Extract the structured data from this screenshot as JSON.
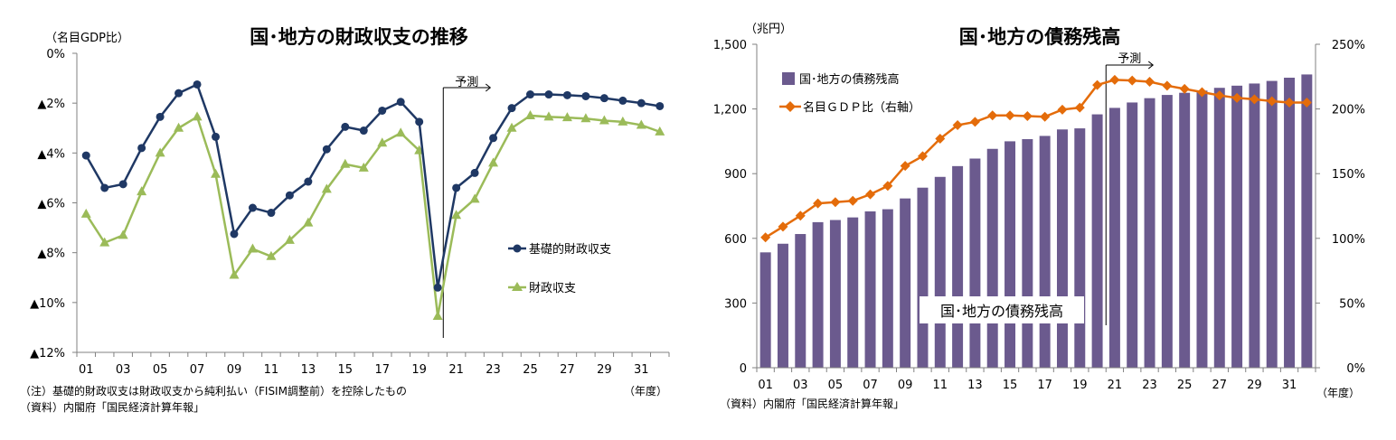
{
  "chart_data": [
    {
      "type": "line",
      "title": "国･地方の財政収支の推移",
      "ylabel": "（名目GDP比）",
      "xlabel": "（年度）",
      "ylim": [
        -12,
        0
      ],
      "y_ticks": [
        0,
        -2,
        -4,
        -6,
        -8,
        -10,
        -12
      ],
      "y_tick_labels": [
        "0%",
        "▲2%",
        "▲4%",
        "▲6%",
        "▲8%",
        "▲10%",
        "▲12%"
      ],
      "x": [
        "01",
        "02",
        "03",
        "04",
        "05",
        "06",
        "07",
        "08",
        "09",
        "10",
        "11",
        "12",
        "13",
        "14",
        "15",
        "16",
        "17",
        "18",
        "19",
        "20",
        "21",
        "22",
        "23",
        "24",
        "25",
        "26",
        "27",
        "28",
        "29",
        "30",
        "31",
        "32"
      ],
      "x_tick_labels": [
        "01",
        "03",
        "05",
        "07",
        "09",
        "11",
        "13",
        "15",
        "17",
        "19",
        "21",
        "23",
        "25",
        "27",
        "29",
        "31"
      ],
      "forecast_label": "予測",
      "forecast_start": "20",
      "series": [
        {
          "name": "基礎的財政収支",
          "color": "#1f3864",
          "marker": "circle",
          "values": [
            -4.1,
            -5.4,
            -5.25,
            -3.8,
            -2.55,
            -1.6,
            -1.25,
            -3.35,
            -7.25,
            -6.2,
            -6.4,
            -5.7,
            -5.15,
            -3.85,
            -2.95,
            -3.1,
            -2.3,
            -1.95,
            -2.75,
            -9.4,
            -5.4,
            -4.8,
            -3.4,
            -2.2,
            -1.65,
            -1.65,
            -1.68,
            -1.72,
            -1.8,
            -1.9,
            -2.0,
            -2.12
          ]
        },
        {
          "name": "財政収支",
          "color": "#9bbb59",
          "marker": "triangle",
          "values": [
            -6.45,
            -7.6,
            -7.3,
            -5.55,
            -4.0,
            -3.0,
            -2.55,
            -4.85,
            -8.9,
            -7.85,
            -8.15,
            -7.5,
            -6.8,
            -5.45,
            -4.45,
            -4.6,
            -3.6,
            -3.2,
            -3.9,
            -10.55,
            -6.5,
            -5.85,
            -4.4,
            -3.0,
            -2.5,
            -2.55,
            -2.58,
            -2.62,
            -2.7,
            -2.75,
            -2.88,
            -3.15
          ]
        }
      ],
      "notes": [
        "（注）基礎的財政収支は財政収支から純利払い（FISIM調整前）を控除したもの",
        "（資料）内閣府「国民経済計算年報」"
      ]
    },
    {
      "type": "bar+line",
      "title": "国･地方の債務残高",
      "ylabel_left": "（兆円）",
      "xlabel": "（年度）",
      "ylim_left": [
        0,
        1500
      ],
      "y_ticks_left": [
        0,
        300,
        600,
        900,
        1200,
        1500
      ],
      "y_tick_labels_left": [
        "0",
        "300",
        "600",
        "900",
        "1,200",
        "1,500"
      ],
      "ylim_right": [
        0,
        250
      ],
      "y_ticks_right": [
        0,
        50,
        100,
        150,
        200,
        250
      ],
      "y_tick_labels_right": [
        "0%",
        "50%",
        "100%",
        "150%",
        "200%",
        "250%"
      ],
      "x": [
        "01",
        "02",
        "03",
        "04",
        "05",
        "06",
        "07",
        "08",
        "09",
        "10",
        "11",
        "12",
        "13",
        "14",
        "15",
        "16",
        "17",
        "18",
        "19",
        "20",
        "21",
        "22",
        "23",
        "24",
        "25",
        "26",
        "27",
        "28",
        "29",
        "30",
        "31",
        "32"
      ],
      "x_tick_labels": [
        "01",
        "03",
        "05",
        "07",
        "09",
        "11",
        "13",
        "15",
        "17",
        "19",
        "21",
        "23",
        "25",
        "27",
        "29",
        "31"
      ],
      "forecast_label": "予測",
      "forecast_start": "20",
      "annotation": "国･地方の債務残高",
      "series": [
        {
          "name": "国･地方の債務残高",
          "kind": "bar",
          "axis": "left",
          "color": "#6b5a8e",
          "values": [
            535,
            575,
            620,
            675,
            685,
            697,
            725,
            735,
            785,
            835,
            885,
            935,
            970,
            1015,
            1050,
            1060,
            1075,
            1105,
            1110,
            1175,
            1205,
            1230,
            1250,
            1265,
            1275,
            1285,
            1298,
            1308,
            1318,
            1330,
            1345,
            1360
          ]
        },
        {
          "name": "名目ＧＤＰ比（右軸）",
          "kind": "line",
          "axis": "right",
          "color": "#e46c0a",
          "marker": "diamond",
          "values": [
            100.7,
            109,
            117.5,
            127,
            128,
            129,
            134,
            140.5,
            156,
            163.5,
            177,
            187.5,
            190,
            195,
            195,
            194.5,
            194,
            199.5,
            201,
            218.5,
            222.5,
            222,
            221,
            218,
            215.5,
            213,
            210.5,
            208.5,
            207.5,
            206,
            205,
            205
          ]
        }
      ],
      "notes": [
        "（資料）内閣府「国民経済計算年報」"
      ]
    }
  ]
}
